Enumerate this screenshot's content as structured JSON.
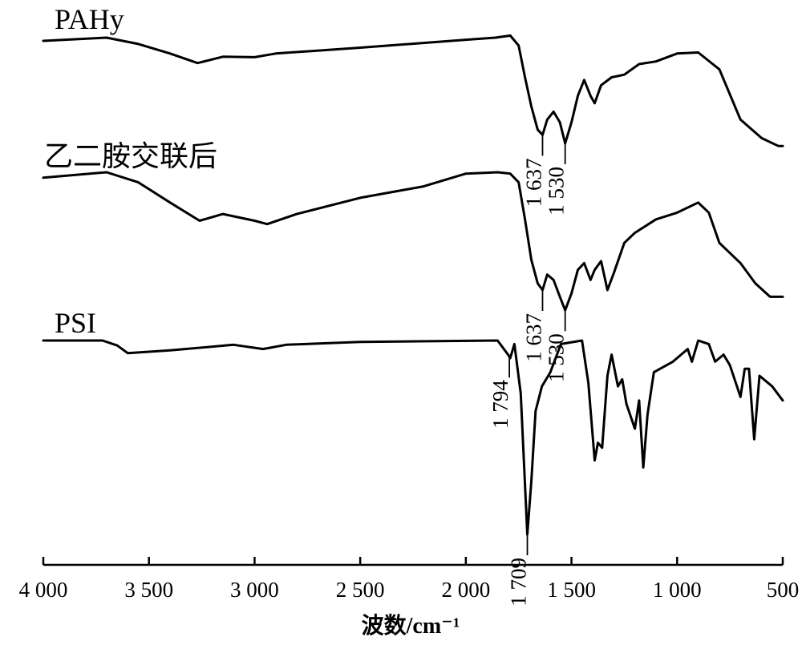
{
  "chart_data": {
    "type": "line",
    "xlabel": "波数/cm⁻¹",
    "ylabel": "",
    "xlim": [
      4000,
      500
    ],
    "x_reversed": true,
    "x_ticks": [
      {
        "value": 4000,
        "label": "4 000"
      },
      {
        "value": 3500,
        "label": "3 500"
      },
      {
        "value": 3000,
        "label": "3 000"
      },
      {
        "value": 2500,
        "label": "2 500"
      },
      {
        "value": 2000,
        "label": "2 000"
      },
      {
        "value": 1500,
        "label": "1 500"
      },
      {
        "value": 1000,
        "label": "1 000"
      },
      {
        "value": 500,
        "label": "500"
      }
    ],
    "y_axis_shown": false,
    "grid": false,
    "series": [
      {
        "name": "PAHy",
        "peaks": [
          {
            "x": 1637,
            "label": "1 637"
          },
          {
            "x": 1530,
            "label": "1 530"
          }
        ],
        "points": [
          [
            4000,
            0.06
          ],
          [
            3700,
            0.0
          ],
          [
            3550,
            0.12
          ],
          [
            3400,
            0.3
          ],
          [
            3270,
            0.48
          ],
          [
            3150,
            0.36
          ],
          [
            3000,
            0.37
          ],
          [
            2900,
            0.3
          ],
          [
            2500,
            0.19
          ],
          [
            2000,
            0.04
          ],
          [
            1860,
            0.0
          ],
          [
            1790,
            -0.04
          ],
          [
            1750,
            0.15
          ],
          [
            1720,
            0.75
          ],
          [
            1690,
            1.3
          ],
          [
            1660,
            1.74
          ],
          [
            1637,
            1.84
          ],
          [
            1615,
            1.55
          ],
          [
            1585,
            1.4
          ],
          [
            1555,
            1.6
          ],
          [
            1530,
            2.0
          ],
          [
            1500,
            1.6
          ],
          [
            1470,
            1.1
          ],
          [
            1440,
            0.8
          ],
          [
            1410,
            1.1
          ],
          [
            1390,
            1.24
          ],
          [
            1360,
            0.9
          ],
          [
            1310,
            0.75
          ],
          [
            1250,
            0.7
          ],
          [
            1180,
            0.5
          ],
          [
            1100,
            0.45
          ],
          [
            1000,
            0.3
          ],
          [
            900,
            0.28
          ],
          [
            800,
            0.6
          ],
          [
            700,
            1.55
          ],
          [
            600,
            1.9
          ],
          [
            520,
            2.05
          ],
          [
            500,
            2.05
          ]
        ]
      },
      {
        "name": "乙二胺交联后",
        "peaks": [
          {
            "x": 1637,
            "label": "1 637"
          },
          {
            "x": 1530,
            "label": "1 530"
          }
        ],
        "points": [
          [
            4000,
            0.08
          ],
          [
            3700,
            0.0
          ],
          [
            3550,
            0.15
          ],
          [
            3400,
            0.45
          ],
          [
            3260,
            0.72
          ],
          [
            3150,
            0.62
          ],
          [
            3000,
            0.72
          ],
          [
            2940,
            0.77
          ],
          [
            2800,
            0.62
          ],
          [
            2500,
            0.38
          ],
          [
            2200,
            0.21
          ],
          [
            2000,
            0.02
          ],
          [
            1850,
            0.0
          ],
          [
            1790,
            0.02
          ],
          [
            1750,
            0.15
          ],
          [
            1720,
            0.7
          ],
          [
            1690,
            1.3
          ],
          [
            1660,
            1.65
          ],
          [
            1637,
            1.75
          ],
          [
            1615,
            1.52
          ],
          [
            1585,
            1.6
          ],
          [
            1555,
            1.85
          ],
          [
            1530,
            2.05
          ],
          [
            1500,
            1.8
          ],
          [
            1470,
            1.45
          ],
          [
            1440,
            1.35
          ],
          [
            1410,
            1.6
          ],
          [
            1390,
            1.45
          ],
          [
            1360,
            1.32
          ],
          [
            1330,
            1.75
          ],
          [
            1300,
            1.5
          ],
          [
            1250,
            1.05
          ],
          [
            1200,
            0.9
          ],
          [
            1100,
            0.7
          ],
          [
            1000,
            0.6
          ],
          [
            900,
            0.45
          ],
          [
            850,
            0.6
          ],
          [
            800,
            1.05
          ],
          [
            700,
            1.35
          ],
          [
            630,
            1.65
          ],
          [
            560,
            1.85
          ],
          [
            500,
            1.85
          ]
        ]
      },
      {
        "name": "PSI",
        "peaks": [
          {
            "x": 1794,
            "label": "1 794"
          },
          {
            "x": 1709,
            "label": "1 709"
          }
        ],
        "points": [
          [
            4000,
            0.0
          ],
          [
            3720,
            0.0
          ],
          [
            3650,
            0.07
          ],
          [
            3600,
            0.18
          ],
          [
            3400,
            0.14
          ],
          [
            3100,
            0.06
          ],
          [
            2960,
            0.12
          ],
          [
            2850,
            0.06
          ],
          [
            2500,
            0.02
          ],
          [
            1850,
            0.0
          ],
          [
            1800,
            0.2
          ],
          [
            1790,
            0.25
          ],
          [
            1770,
            0.05
          ],
          [
            1740,
            0.75
          ],
          [
            1709,
            2.75
          ],
          [
            1690,
            2.0
          ],
          [
            1670,
            1.0
          ],
          [
            1640,
            0.65
          ],
          [
            1600,
            0.45
          ],
          [
            1550,
            0.05
          ],
          [
            1450,
            0.0
          ],
          [
            1420,
            0.6
          ],
          [
            1390,
            1.7
          ],
          [
            1375,
            1.45
          ],
          [
            1355,
            1.52
          ],
          [
            1330,
            0.5
          ],
          [
            1310,
            0.2
          ],
          [
            1280,
            0.65
          ],
          [
            1260,
            0.55
          ],
          [
            1240,
            0.9
          ],
          [
            1200,
            1.25
          ],
          [
            1180,
            0.85
          ],
          [
            1160,
            1.8
          ],
          [
            1140,
            1.05
          ],
          [
            1110,
            0.45
          ],
          [
            1050,
            0.35
          ],
          [
            1020,
            0.3
          ],
          [
            950,
            0.12
          ],
          [
            930,
            0.3
          ],
          [
            900,
            0.0
          ],
          [
            850,
            0.05
          ],
          [
            820,
            0.3
          ],
          [
            780,
            0.2
          ],
          [
            750,
            0.35
          ],
          [
            700,
            0.8
          ],
          [
            680,
            0.4
          ],
          [
            660,
            0.4
          ],
          [
            635,
            1.4
          ],
          [
            610,
            0.5
          ],
          [
            550,
            0.65
          ],
          [
            500,
            0.85
          ]
        ]
      }
    ]
  }
}
